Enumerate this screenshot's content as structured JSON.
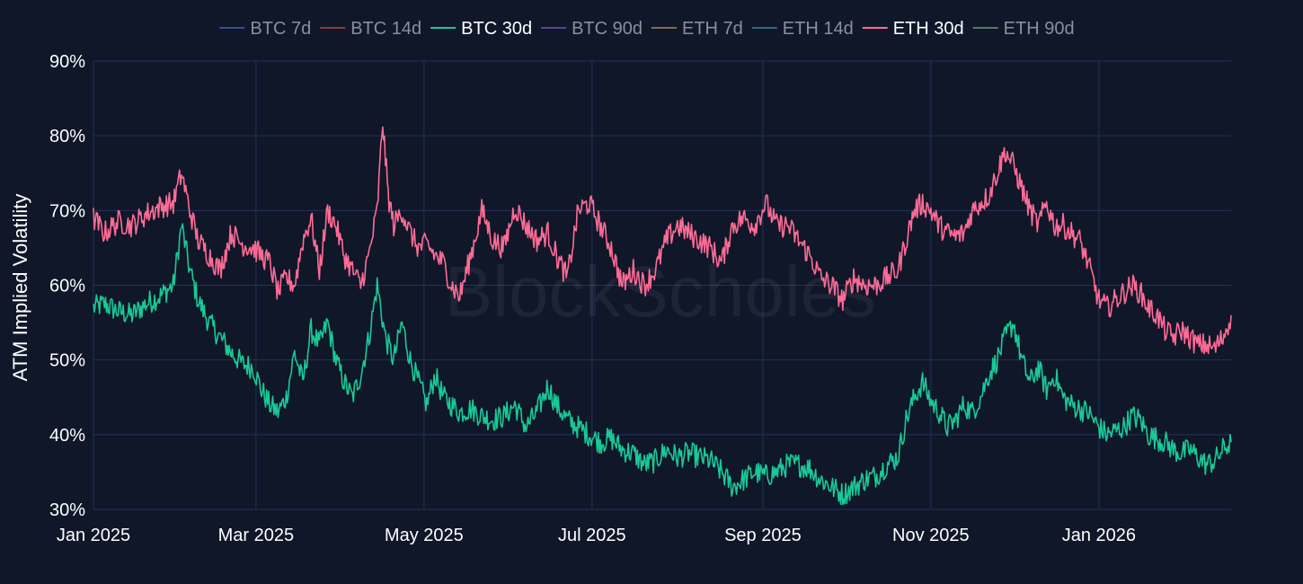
{
  "watermark": "BlockScholes",
  "chart_data": {
    "type": "line",
    "ylabel": "ATM Implied Volatility",
    "ylim": [
      30,
      90
    ],
    "y_ticks": [
      30,
      40,
      50,
      60,
      70,
      80,
      90
    ],
    "y_tick_suffix": "%",
    "xlim": [
      "2025-01-01",
      "2026-02-18"
    ],
    "x_ticks": [
      {
        "date": "2025-01-01",
        "label": "Jan 2025"
      },
      {
        "date": "2025-03-01",
        "label": "Mar 2025"
      },
      {
        "date": "2025-05-01",
        "label": "May 2025"
      },
      {
        "date": "2025-07-01",
        "label": "Jul 2025"
      },
      {
        "date": "2025-09-01",
        "label": "Sep 2025"
      },
      {
        "date": "2025-11-01",
        "label": "Nov 2025"
      },
      {
        "date": "2026-01-01",
        "label": "Jan 2026"
      }
    ],
    "grid": true,
    "legend_position": "top-center",
    "legend": [
      {
        "name": "BTC 7d",
        "color": "#3d4a9e",
        "active": false
      },
      {
        "name": "BTC 14d",
        "color": "#8a3a3a",
        "active": false
      },
      {
        "name": "BTC 30d",
        "color": "#19c996",
        "active": true
      },
      {
        "name": "BTC 90d",
        "color": "#5a3fa3",
        "active": false
      },
      {
        "name": "ETH 7d",
        "color": "#8a6a4a",
        "active": false
      },
      {
        "name": "ETH 14d",
        "color": "#2a6a8a",
        "active": false
      },
      {
        "name": "ETH 30d",
        "color": "#ff6b95",
        "active": true
      },
      {
        "name": "ETH 90d",
        "color": "#5a7a5a",
        "active": false
      }
    ],
    "series": [
      {
        "name": "BTC 30d",
        "color": "#19c996",
        "points": [
          [
            "2025-01-01",
            57
          ],
          [
            "2025-01-05",
            57.5
          ],
          [
            "2025-01-10",
            56.5
          ],
          [
            "2025-01-15",
            56
          ],
          [
            "2025-01-20",
            57.5
          ],
          [
            "2025-01-25",
            58.5
          ],
          [
            "2025-01-30",
            60
          ],
          [
            "2025-02-02",
            68
          ],
          [
            "2025-02-05",
            62
          ],
          [
            "2025-02-08",
            58
          ],
          [
            "2025-02-12",
            55
          ],
          [
            "2025-02-16",
            53
          ],
          [
            "2025-02-20",
            51
          ],
          [
            "2025-02-24",
            49.5
          ],
          [
            "2025-02-28",
            49
          ],
          [
            "2025-03-03",
            46
          ],
          [
            "2025-03-06",
            44
          ],
          [
            "2025-03-09",
            43
          ],
          [
            "2025-03-12",
            45
          ],
          [
            "2025-03-15",
            51
          ],
          [
            "2025-03-18",
            47
          ],
          [
            "2025-03-21",
            54
          ],
          [
            "2025-03-24",
            52
          ],
          [
            "2025-03-27",
            55
          ],
          [
            "2025-03-30",
            50
          ],
          [
            "2025-04-02",
            47
          ],
          [
            "2025-04-05",
            45
          ],
          [
            "2025-04-08",
            48
          ],
          [
            "2025-04-11",
            53
          ],
          [
            "2025-04-14",
            60
          ],
          [
            "2025-04-17",
            53
          ],
          [
            "2025-04-20",
            50
          ],
          [
            "2025-04-23",
            55
          ],
          [
            "2025-04-26",
            50
          ],
          [
            "2025-04-29",
            47
          ],
          [
            "2025-05-02",
            44
          ],
          [
            "2025-05-05",
            48
          ],
          [
            "2025-05-08",
            45
          ],
          [
            "2025-05-11",
            44
          ],
          [
            "2025-05-14",
            43
          ],
          [
            "2025-05-18",
            43.5
          ],
          [
            "2025-05-22",
            42.5
          ],
          [
            "2025-05-26",
            42
          ],
          [
            "2025-05-30",
            42.5
          ],
          [
            "2025-06-03",
            44
          ],
          [
            "2025-06-07",
            41
          ],
          [
            "2025-06-11",
            43
          ],
          [
            "2025-06-15",
            46.5
          ],
          [
            "2025-06-18",
            44
          ],
          [
            "2025-06-22",
            42
          ],
          [
            "2025-06-26",
            41
          ],
          [
            "2025-06-30",
            40
          ],
          [
            "2025-07-04",
            39
          ],
          [
            "2025-07-08",
            39.5
          ],
          [
            "2025-07-12",
            38
          ],
          [
            "2025-07-16",
            37.5
          ],
          [
            "2025-07-20",
            36
          ],
          [
            "2025-07-24",
            36.5
          ],
          [
            "2025-07-28",
            38
          ],
          [
            "2025-08-01",
            37
          ],
          [
            "2025-08-05",
            37.5
          ],
          [
            "2025-08-09",
            37
          ],
          [
            "2025-08-13",
            36.5
          ],
          [
            "2025-08-17",
            35
          ],
          [
            "2025-08-21",
            33
          ],
          [
            "2025-08-25",
            34
          ],
          [
            "2025-08-29",
            35
          ],
          [
            "2025-09-02",
            34.5
          ],
          [
            "2025-09-06",
            35
          ],
          [
            "2025-09-10",
            36
          ],
          [
            "2025-09-14",
            36
          ],
          [
            "2025-09-18",
            35.5
          ],
          [
            "2025-09-22",
            34
          ],
          [
            "2025-09-26",
            33
          ],
          [
            "2025-09-30",
            32
          ],
          [
            "2025-10-04",
            33
          ],
          [
            "2025-10-08",
            34
          ],
          [
            "2025-10-12",
            34.5
          ],
          [
            "2025-10-16",
            36
          ],
          [
            "2025-10-20",
            37
          ],
          [
            "2025-10-23",
            42
          ],
          [
            "2025-10-26",
            45
          ],
          [
            "2025-10-29",
            47
          ],
          [
            "2025-11-01",
            44.5
          ],
          [
            "2025-11-04",
            43
          ],
          [
            "2025-11-07",
            41
          ],
          [
            "2025-11-10",
            42
          ],
          [
            "2025-11-13",
            44
          ],
          [
            "2025-11-16",
            43
          ],
          [
            "2025-11-19",
            45
          ],
          [
            "2025-11-22",
            48
          ],
          [
            "2025-11-25",
            50
          ],
          [
            "2025-11-28",
            53
          ],
          [
            "2025-12-01",
            55
          ],
          [
            "2025-12-04",
            50
          ],
          [
            "2025-12-07",
            47
          ],
          [
            "2025-12-10",
            49
          ],
          [
            "2025-12-13",
            46
          ],
          [
            "2025-12-16",
            48
          ],
          [
            "2025-12-19",
            45
          ],
          [
            "2025-12-22",
            44
          ],
          [
            "2025-12-25",
            43.5
          ],
          [
            "2025-12-28",
            43
          ],
          [
            "2026-01-01",
            41
          ],
          [
            "2026-01-04",
            40
          ],
          [
            "2026-01-07",
            40.5
          ],
          [
            "2026-01-10",
            41
          ],
          [
            "2026-01-13",
            42.5
          ],
          [
            "2026-01-16",
            42
          ],
          [
            "2026-01-19",
            40
          ],
          [
            "2026-01-22",
            39.5
          ],
          [
            "2026-01-25",
            39
          ],
          [
            "2026-01-28",
            38
          ],
          [
            "2026-01-31",
            37.5
          ],
          [
            "2026-02-03",
            38
          ],
          [
            "2026-02-06",
            37
          ],
          [
            "2026-02-09",
            36
          ],
          [
            "2026-02-12",
            36.5
          ],
          [
            "2026-02-15",
            38
          ],
          [
            "2026-02-18",
            39
          ]
        ]
      },
      {
        "name": "ETH 30d",
        "color": "#ff6b95",
        "points": [
          [
            "2025-01-01",
            69
          ],
          [
            "2025-01-05",
            67
          ],
          [
            "2025-01-10",
            68.5
          ],
          [
            "2025-01-15",
            68
          ],
          [
            "2025-01-20",
            69.5
          ],
          [
            "2025-01-25",
            70.5
          ],
          [
            "2025-01-30",
            71
          ],
          [
            "2025-02-02",
            75
          ],
          [
            "2025-02-05",
            70
          ],
          [
            "2025-02-08",
            66
          ],
          [
            "2025-02-12",
            64
          ],
          [
            "2025-02-16",
            62
          ],
          [
            "2025-02-20",
            67
          ],
          [
            "2025-02-24",
            65.5
          ],
          [
            "2025-02-28",
            65
          ],
          [
            "2025-03-03",
            64
          ],
          [
            "2025-03-06",
            63
          ],
          [
            "2025-03-09",
            59
          ],
          [
            "2025-03-12",
            61
          ],
          [
            "2025-03-15",
            60
          ],
          [
            "2025-03-18",
            66
          ],
          [
            "2025-03-21",
            69
          ],
          [
            "2025-03-24",
            62
          ],
          [
            "2025-03-27",
            70
          ],
          [
            "2025-03-30",
            68
          ],
          [
            "2025-04-02",
            64
          ],
          [
            "2025-04-05",
            62
          ],
          [
            "2025-04-08",
            60
          ],
          [
            "2025-04-11",
            64
          ],
          [
            "2025-04-14",
            70
          ],
          [
            "2025-04-16",
            82
          ],
          [
            "2025-04-18",
            72
          ],
          [
            "2025-04-20",
            68
          ],
          [
            "2025-04-23",
            70
          ],
          [
            "2025-04-26",
            67
          ],
          [
            "2025-04-29",
            65
          ],
          [
            "2025-05-02",
            65.5
          ],
          [
            "2025-05-05",
            64
          ],
          [
            "2025-05-08",
            63
          ],
          [
            "2025-05-11",
            60
          ],
          [
            "2025-05-14",
            58.5
          ],
          [
            "2025-05-18",
            64
          ],
          [
            "2025-05-22",
            70
          ],
          [
            "2025-05-26",
            66
          ],
          [
            "2025-05-30",
            65
          ],
          [
            "2025-06-03",
            70.5
          ],
          [
            "2025-06-07",
            68
          ],
          [
            "2025-06-11",
            66
          ],
          [
            "2025-06-15",
            67
          ],
          [
            "2025-06-18",
            64
          ],
          [
            "2025-06-22",
            61
          ],
          [
            "2025-06-26",
            70
          ],
          [
            "2025-06-30",
            71
          ],
          [
            "2025-07-04",
            68
          ],
          [
            "2025-07-08",
            65
          ],
          [
            "2025-07-12",
            60
          ],
          [
            "2025-07-16",
            62
          ],
          [
            "2025-07-20",
            60
          ],
          [
            "2025-07-24",
            62
          ],
          [
            "2025-07-28",
            66
          ],
          [
            "2025-08-01",
            68
          ],
          [
            "2025-08-05",
            67
          ],
          [
            "2025-08-09",
            66
          ],
          [
            "2025-08-13",
            65
          ],
          [
            "2025-08-17",
            63
          ],
          [
            "2025-08-21",
            68
          ],
          [
            "2025-08-25",
            69
          ],
          [
            "2025-08-29",
            68
          ],
          [
            "2025-09-02",
            71
          ],
          [
            "2025-09-06",
            68
          ],
          [
            "2025-09-10",
            68
          ],
          [
            "2025-09-14",
            66
          ],
          [
            "2025-09-18",
            64
          ],
          [
            "2025-09-22",
            61
          ],
          [
            "2025-09-26",
            60
          ],
          [
            "2025-09-30",
            58
          ],
          [
            "2025-10-04",
            61
          ],
          [
            "2025-10-08",
            60
          ],
          [
            "2025-10-12",
            60
          ],
          [
            "2025-10-16",
            61
          ],
          [
            "2025-10-20",
            62
          ],
          [
            "2025-10-23",
            66
          ],
          [
            "2025-10-26",
            70
          ],
          [
            "2025-10-29",
            71
          ],
          [
            "2025-11-01",
            70
          ],
          [
            "2025-11-04",
            68
          ],
          [
            "2025-11-07",
            67
          ],
          [
            "2025-11-10",
            66.5
          ],
          [
            "2025-11-13",
            67
          ],
          [
            "2025-11-16",
            70
          ],
          [
            "2025-11-19",
            71
          ],
          [
            "2025-11-22",
            72
          ],
          [
            "2025-11-25",
            75
          ],
          [
            "2025-11-28",
            78
          ],
          [
            "2025-12-01",
            76
          ],
          [
            "2025-12-04",
            73
          ],
          [
            "2025-12-07",
            70
          ],
          [
            "2025-12-10",
            68
          ],
          [
            "2025-12-13",
            71
          ],
          [
            "2025-12-16",
            68
          ],
          [
            "2025-12-19",
            68
          ],
          [
            "2025-12-22",
            67
          ],
          [
            "2025-12-25",
            66
          ],
          [
            "2025-12-28",
            63
          ],
          [
            "2026-01-01",
            58
          ],
          [
            "2026-01-04",
            57
          ],
          [
            "2026-01-07",
            58
          ],
          [
            "2026-01-10",
            59
          ],
          [
            "2026-01-13",
            60
          ],
          [
            "2026-01-16",
            59
          ],
          [
            "2026-01-19",
            57
          ],
          [
            "2026-01-22",
            56
          ],
          [
            "2026-01-25",
            54
          ],
          [
            "2026-01-28",
            53
          ],
          [
            "2026-01-31",
            54
          ],
          [
            "2026-02-03",
            53
          ],
          [
            "2026-02-06",
            52
          ],
          [
            "2026-02-09",
            52
          ],
          [
            "2026-02-12",
            51.5
          ],
          [
            "2026-02-15",
            53
          ],
          [
            "2026-02-18",
            56
          ]
        ]
      }
    ]
  }
}
